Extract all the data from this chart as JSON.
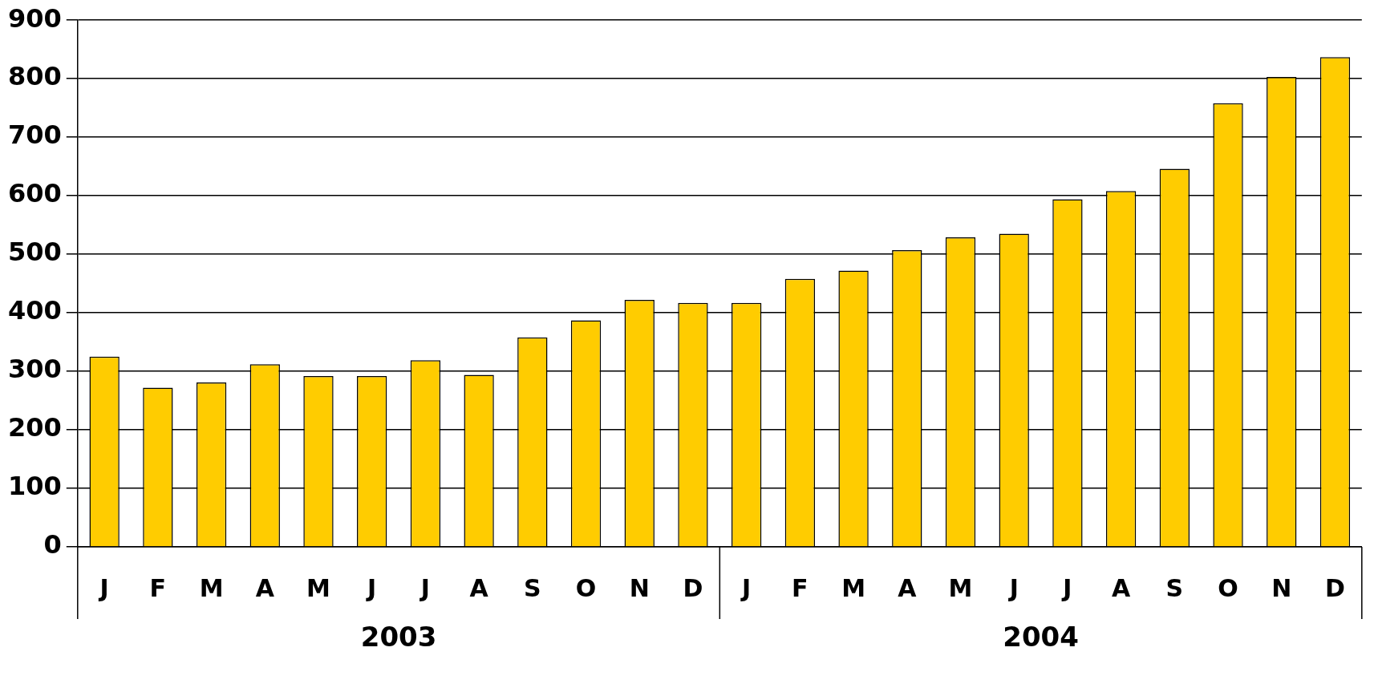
{
  "chart_data": {
    "type": "bar",
    "categories": [
      "J",
      "F",
      "M",
      "A",
      "M",
      "J",
      "J",
      "A",
      "S",
      "O",
      "N",
      "D",
      "J",
      "F",
      "M",
      "A",
      "M",
      "J",
      "J",
      "A",
      "S",
      "O",
      "N",
      "D"
    ],
    "values": [
      325,
      272,
      281,
      312,
      292,
      292,
      319,
      294,
      358,
      387,
      422,
      417,
      417,
      458,
      472,
      507,
      529,
      535,
      594,
      608,
      646,
      758,
      803,
      837
    ],
    "color": "#ffcc00",
    "ylim": [
      0,
      900
    ],
    "yticks": [
      0,
      100,
      200,
      300,
      400,
      500,
      600,
      700,
      800,
      900
    ],
    "grid": "y",
    "legend": false,
    "annotations": [
      "2003",
      "2004"
    ]
  }
}
